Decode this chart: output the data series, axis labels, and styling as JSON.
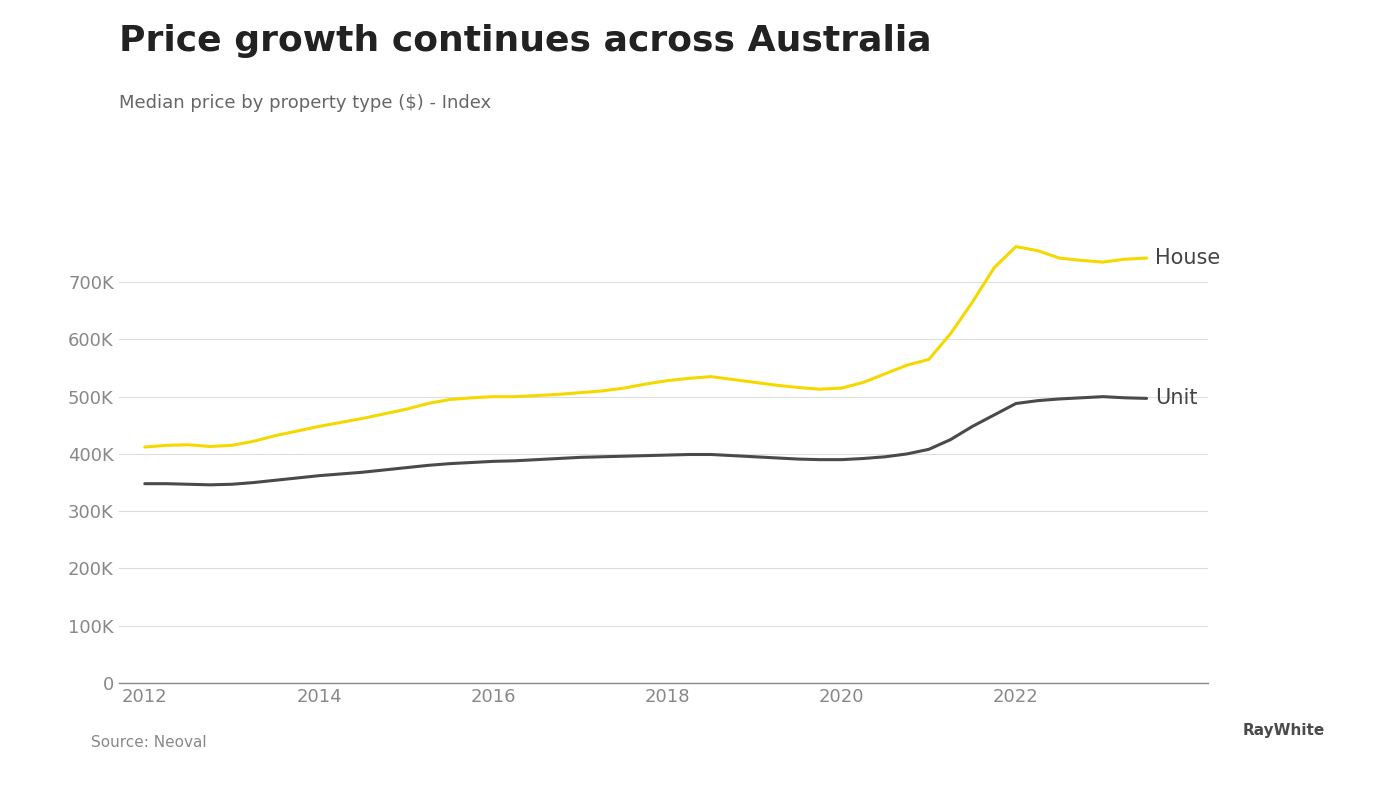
{
  "title": "Price growth continues across Australia",
  "subtitle": "Median price by property type ($) - Index",
  "source": "Source: Neoval",
  "background_color": "#ffffff",
  "plot_bg_color": "#ffffff",
  "house_color": "#f5d800",
  "unit_color": "#4a4a4a",
  "house_label": "House",
  "unit_label": "Unit",
  "ylim": [
    0,
    850000
  ],
  "yticks": [
    0,
    100000,
    200000,
    300000,
    400000,
    500000,
    600000,
    700000
  ],
  "ytick_labels": [
    "0",
    "100K",
    "200K",
    "300K",
    "400K",
    "500K",
    "600K",
    "700K"
  ],
  "xticks": [
    2012,
    2014,
    2016,
    2018,
    2020,
    2022
  ],
  "xlim_min": 2011.7,
  "xlim_max": 2024.2,
  "house_x": [
    2012.0,
    2012.25,
    2012.5,
    2012.75,
    2013.0,
    2013.25,
    2013.5,
    2013.75,
    2014.0,
    2014.25,
    2014.5,
    2014.75,
    2015.0,
    2015.25,
    2015.5,
    2015.75,
    2016.0,
    2016.25,
    2016.5,
    2016.75,
    2017.0,
    2017.25,
    2017.5,
    2017.75,
    2018.0,
    2018.25,
    2018.5,
    2018.75,
    2019.0,
    2019.25,
    2019.5,
    2019.75,
    2020.0,
    2020.25,
    2020.5,
    2020.75,
    2021.0,
    2021.25,
    2021.5,
    2021.75,
    2022.0,
    2022.25,
    2022.5,
    2022.75,
    2023.0,
    2023.25,
    2023.5
  ],
  "house_y": [
    412000,
    415000,
    416000,
    413000,
    415000,
    422000,
    432000,
    440000,
    448000,
    455000,
    462000,
    470000,
    478000,
    488000,
    495000,
    498000,
    500000,
    500000,
    502000,
    504000,
    507000,
    510000,
    515000,
    522000,
    528000,
    532000,
    535000,
    530000,
    525000,
    520000,
    516000,
    513000,
    515000,
    525000,
    540000,
    555000,
    565000,
    610000,
    665000,
    725000,
    762000,
    755000,
    742000,
    738000,
    735000,
    740000,
    742000
  ],
  "unit_x": [
    2012.0,
    2012.25,
    2012.5,
    2012.75,
    2013.0,
    2013.25,
    2013.5,
    2013.75,
    2014.0,
    2014.25,
    2014.5,
    2014.75,
    2015.0,
    2015.25,
    2015.5,
    2015.75,
    2016.0,
    2016.25,
    2016.5,
    2016.75,
    2017.0,
    2017.25,
    2017.5,
    2017.75,
    2018.0,
    2018.25,
    2018.5,
    2018.75,
    2019.0,
    2019.25,
    2019.5,
    2019.75,
    2020.0,
    2020.25,
    2020.5,
    2020.75,
    2021.0,
    2021.25,
    2021.5,
    2021.75,
    2022.0,
    2022.25,
    2022.5,
    2022.75,
    2023.0,
    2023.25,
    2023.5
  ],
  "unit_y": [
    348000,
    348000,
    347000,
    346000,
    347000,
    350000,
    354000,
    358000,
    362000,
    365000,
    368000,
    372000,
    376000,
    380000,
    383000,
    385000,
    387000,
    388000,
    390000,
    392000,
    394000,
    395000,
    396000,
    397000,
    398000,
    399000,
    399000,
    397000,
    395000,
    393000,
    391000,
    390000,
    390000,
    392000,
    395000,
    400000,
    408000,
    425000,
    448000,
    468000,
    488000,
    493000,
    496000,
    498000,
    500000,
    498000,
    497000
  ],
  "raywhite_box_color": "#FFE800",
  "raywhite_text_color": "#4a4a4a",
  "title_color": "#222222",
  "subtitle_color": "#666666",
  "tick_color": "#888888",
  "grid_color": "#dddddd",
  "spine_color": "#888888",
  "source_color": "#888888",
  "label_color": "#444444",
  "title_fontsize": 26,
  "subtitle_fontsize": 13,
  "label_fontsize": 15,
  "tick_fontsize": 13,
  "source_fontsize": 11,
  "line_width": 2.2
}
